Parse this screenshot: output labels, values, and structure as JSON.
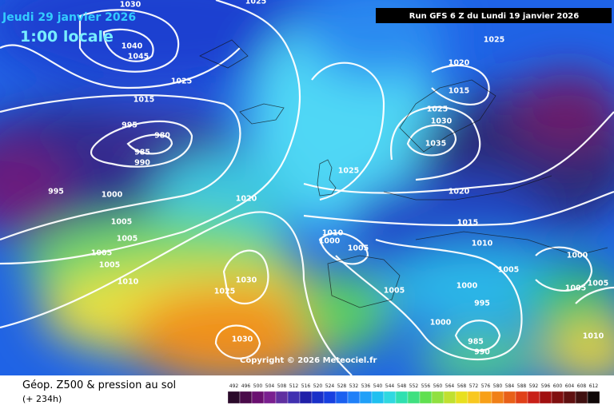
{
  "header": {
    "date": "Jeudi 29 janvier 2026",
    "time": "1:00 locale",
    "run": "Run GFS 6 Z du Lundi 19 janvier 2026"
  },
  "copyright": "Copyright © 2026 Meteociel.fr",
  "footer": {
    "title": "Géop. Z500 & pression au sol",
    "lead": "(+ 234h)"
  },
  "legend": {
    "values": [
      492,
      496,
      500,
      504,
      508,
      512,
      516,
      520,
      524,
      528,
      532,
      536,
      540,
      544,
      548,
      552,
      556,
      560,
      564,
      568,
      572,
      576,
      580,
      584,
      588,
      592,
      596,
      600,
      604,
      608,
      612
    ]
  },
  "isobar_labels": [
    1025,
    1030,
    1040,
    1045,
    1025,
    1015,
    995,
    980,
    985,
    990,
    995,
    1000,
    1005,
    1005,
    1005,
    1005,
    1010,
    1020,
    1030,
    1025,
    1030,
    1025,
    1010,
    1000,
    1005,
    1005,
    1025,
    1020,
    1015,
    1025,
    1030,
    1035,
    1020,
    1015,
    1010,
    1005,
    1000,
    995,
    1000,
    985,
    990,
    1000,
    1005,
    1005,
    1010
  ]
}
